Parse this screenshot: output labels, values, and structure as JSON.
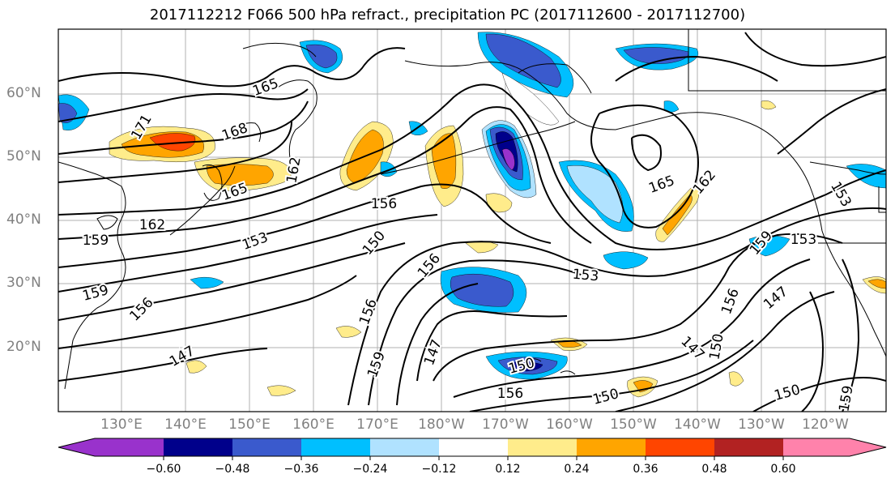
{
  "title": "2017112212 F066 500 hPa refract., precipitation PC (2017112600 - 2017112700)",
  "lat_labels": [
    "60°N",
    "50°N",
    "40°N",
    "30°N",
    "20°N"
  ],
  "lon_labels": [
    "130°E",
    "140°E",
    "150°E",
    "160°E",
    "170°E",
    "180°W",
    "170°W",
    "160°W",
    "150°W",
    "140°W",
    "130°W",
    "120°W"
  ],
  "contour_labels": [
    "165",
    "168",
    "171",
    "165",
    "162",
    "159",
    "153",
    "150",
    "156",
    "156",
    "159",
    "156",
    "147",
    "156",
    "159",
    "147",
    "150",
    "153",
    "165",
    "162",
    "159",
    "153",
    "156",
    "147",
    "150",
    "159",
    "150",
    "147",
    "150",
    "156",
    "162",
    "153"
  ],
  "colorbar": {
    "ticks": [
      "−0.60",
      "−0.48",
      "−0.36",
      "−0.24",
      "−0.12",
      "0.12",
      "0.24",
      "0.36",
      "0.48",
      "0.60"
    ],
    "colors": [
      "#9932cc",
      "#00008b",
      "#3a5acd",
      "#00bfff",
      "#b0e2ff",
      "#ffffff",
      "#ffec8b",
      "#ffa500",
      "#ff4500",
      "#b22222",
      "#ff82ab"
    ]
  }
}
